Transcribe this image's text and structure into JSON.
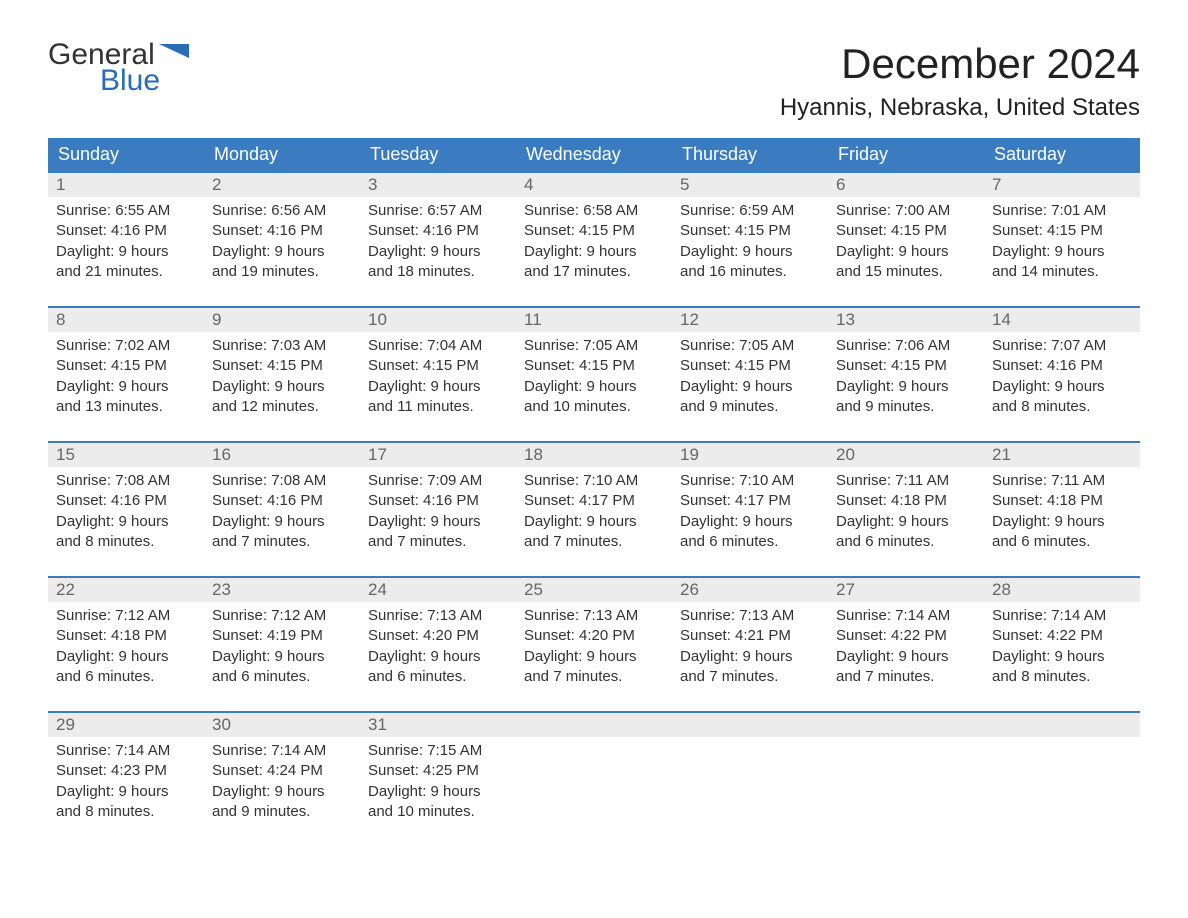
{
  "logo": {
    "text_top": "General",
    "text_bottom": "Blue",
    "flag_color": "#2a6db5",
    "text_color_top": "#333333",
    "text_color_bottom": "#2a6db5"
  },
  "title": "December 2024",
  "location": "Hyannis, Nebraska, United States",
  "colors": {
    "header_bg": "#3b7bbf",
    "header_text": "#ffffff",
    "daynum_bg": "#ececec",
    "daynum_text": "#666666",
    "body_text": "#333333",
    "week_border": "#3b7bbf",
    "page_bg": "#ffffff"
  },
  "typography": {
    "title_fontsize": 42,
    "location_fontsize": 24,
    "dayheader_fontsize": 18,
    "daynum_fontsize": 17,
    "body_fontsize": 15,
    "font_family": "Arial"
  },
  "day_headers": [
    "Sunday",
    "Monday",
    "Tuesday",
    "Wednesday",
    "Thursday",
    "Friday",
    "Saturday"
  ],
  "weeks": [
    [
      {
        "n": "1",
        "sr": "Sunrise: 6:55 AM",
        "ss": "Sunset: 4:16 PM",
        "d1": "Daylight: 9 hours",
        "d2": "and 21 minutes."
      },
      {
        "n": "2",
        "sr": "Sunrise: 6:56 AM",
        "ss": "Sunset: 4:16 PM",
        "d1": "Daylight: 9 hours",
        "d2": "and 19 minutes."
      },
      {
        "n": "3",
        "sr": "Sunrise: 6:57 AM",
        "ss": "Sunset: 4:16 PM",
        "d1": "Daylight: 9 hours",
        "d2": "and 18 minutes."
      },
      {
        "n": "4",
        "sr": "Sunrise: 6:58 AM",
        "ss": "Sunset: 4:15 PM",
        "d1": "Daylight: 9 hours",
        "d2": "and 17 minutes."
      },
      {
        "n": "5",
        "sr": "Sunrise: 6:59 AM",
        "ss": "Sunset: 4:15 PM",
        "d1": "Daylight: 9 hours",
        "d2": "and 16 minutes."
      },
      {
        "n": "6",
        "sr": "Sunrise: 7:00 AM",
        "ss": "Sunset: 4:15 PM",
        "d1": "Daylight: 9 hours",
        "d2": "and 15 minutes."
      },
      {
        "n": "7",
        "sr": "Sunrise: 7:01 AM",
        "ss": "Sunset: 4:15 PM",
        "d1": "Daylight: 9 hours",
        "d2": "and 14 minutes."
      }
    ],
    [
      {
        "n": "8",
        "sr": "Sunrise: 7:02 AM",
        "ss": "Sunset: 4:15 PM",
        "d1": "Daylight: 9 hours",
        "d2": "and 13 minutes."
      },
      {
        "n": "9",
        "sr": "Sunrise: 7:03 AM",
        "ss": "Sunset: 4:15 PM",
        "d1": "Daylight: 9 hours",
        "d2": "and 12 minutes."
      },
      {
        "n": "10",
        "sr": "Sunrise: 7:04 AM",
        "ss": "Sunset: 4:15 PM",
        "d1": "Daylight: 9 hours",
        "d2": "and 11 minutes."
      },
      {
        "n": "11",
        "sr": "Sunrise: 7:05 AM",
        "ss": "Sunset: 4:15 PM",
        "d1": "Daylight: 9 hours",
        "d2": "and 10 minutes."
      },
      {
        "n": "12",
        "sr": "Sunrise: 7:05 AM",
        "ss": "Sunset: 4:15 PM",
        "d1": "Daylight: 9 hours",
        "d2": "and 9 minutes."
      },
      {
        "n": "13",
        "sr": "Sunrise: 7:06 AM",
        "ss": "Sunset: 4:15 PM",
        "d1": "Daylight: 9 hours",
        "d2": "and 9 minutes."
      },
      {
        "n": "14",
        "sr": "Sunrise: 7:07 AM",
        "ss": "Sunset: 4:16 PM",
        "d1": "Daylight: 9 hours",
        "d2": "and 8 minutes."
      }
    ],
    [
      {
        "n": "15",
        "sr": "Sunrise: 7:08 AM",
        "ss": "Sunset: 4:16 PM",
        "d1": "Daylight: 9 hours",
        "d2": "and 8 minutes."
      },
      {
        "n": "16",
        "sr": "Sunrise: 7:08 AM",
        "ss": "Sunset: 4:16 PM",
        "d1": "Daylight: 9 hours",
        "d2": "and 7 minutes."
      },
      {
        "n": "17",
        "sr": "Sunrise: 7:09 AM",
        "ss": "Sunset: 4:16 PM",
        "d1": "Daylight: 9 hours",
        "d2": "and 7 minutes."
      },
      {
        "n": "18",
        "sr": "Sunrise: 7:10 AM",
        "ss": "Sunset: 4:17 PM",
        "d1": "Daylight: 9 hours",
        "d2": "and 7 minutes."
      },
      {
        "n": "19",
        "sr": "Sunrise: 7:10 AM",
        "ss": "Sunset: 4:17 PM",
        "d1": "Daylight: 9 hours",
        "d2": "and 6 minutes."
      },
      {
        "n": "20",
        "sr": "Sunrise: 7:11 AM",
        "ss": "Sunset: 4:18 PM",
        "d1": "Daylight: 9 hours",
        "d2": "and 6 minutes."
      },
      {
        "n": "21",
        "sr": "Sunrise: 7:11 AM",
        "ss": "Sunset: 4:18 PM",
        "d1": "Daylight: 9 hours",
        "d2": "and 6 minutes."
      }
    ],
    [
      {
        "n": "22",
        "sr": "Sunrise: 7:12 AM",
        "ss": "Sunset: 4:18 PM",
        "d1": "Daylight: 9 hours",
        "d2": "and 6 minutes."
      },
      {
        "n": "23",
        "sr": "Sunrise: 7:12 AM",
        "ss": "Sunset: 4:19 PM",
        "d1": "Daylight: 9 hours",
        "d2": "and 6 minutes."
      },
      {
        "n": "24",
        "sr": "Sunrise: 7:13 AM",
        "ss": "Sunset: 4:20 PM",
        "d1": "Daylight: 9 hours",
        "d2": "and 6 minutes."
      },
      {
        "n": "25",
        "sr": "Sunrise: 7:13 AM",
        "ss": "Sunset: 4:20 PM",
        "d1": "Daylight: 9 hours",
        "d2": "and 7 minutes."
      },
      {
        "n": "26",
        "sr": "Sunrise: 7:13 AM",
        "ss": "Sunset: 4:21 PM",
        "d1": "Daylight: 9 hours",
        "d2": "and 7 minutes."
      },
      {
        "n": "27",
        "sr": "Sunrise: 7:14 AM",
        "ss": "Sunset: 4:22 PM",
        "d1": "Daylight: 9 hours",
        "d2": "and 7 minutes."
      },
      {
        "n": "28",
        "sr": "Sunrise: 7:14 AM",
        "ss": "Sunset: 4:22 PM",
        "d1": "Daylight: 9 hours",
        "d2": "and 8 minutes."
      }
    ],
    [
      {
        "n": "29",
        "sr": "Sunrise: 7:14 AM",
        "ss": "Sunset: 4:23 PM",
        "d1": "Daylight: 9 hours",
        "d2": "and 8 minutes."
      },
      {
        "n": "30",
        "sr": "Sunrise: 7:14 AM",
        "ss": "Sunset: 4:24 PM",
        "d1": "Daylight: 9 hours",
        "d2": "and 9 minutes."
      },
      {
        "n": "31",
        "sr": "Sunrise: 7:15 AM",
        "ss": "Sunset: 4:25 PM",
        "d1": "Daylight: 9 hours",
        "d2": "and 10 minutes."
      },
      null,
      null,
      null,
      null
    ]
  ]
}
